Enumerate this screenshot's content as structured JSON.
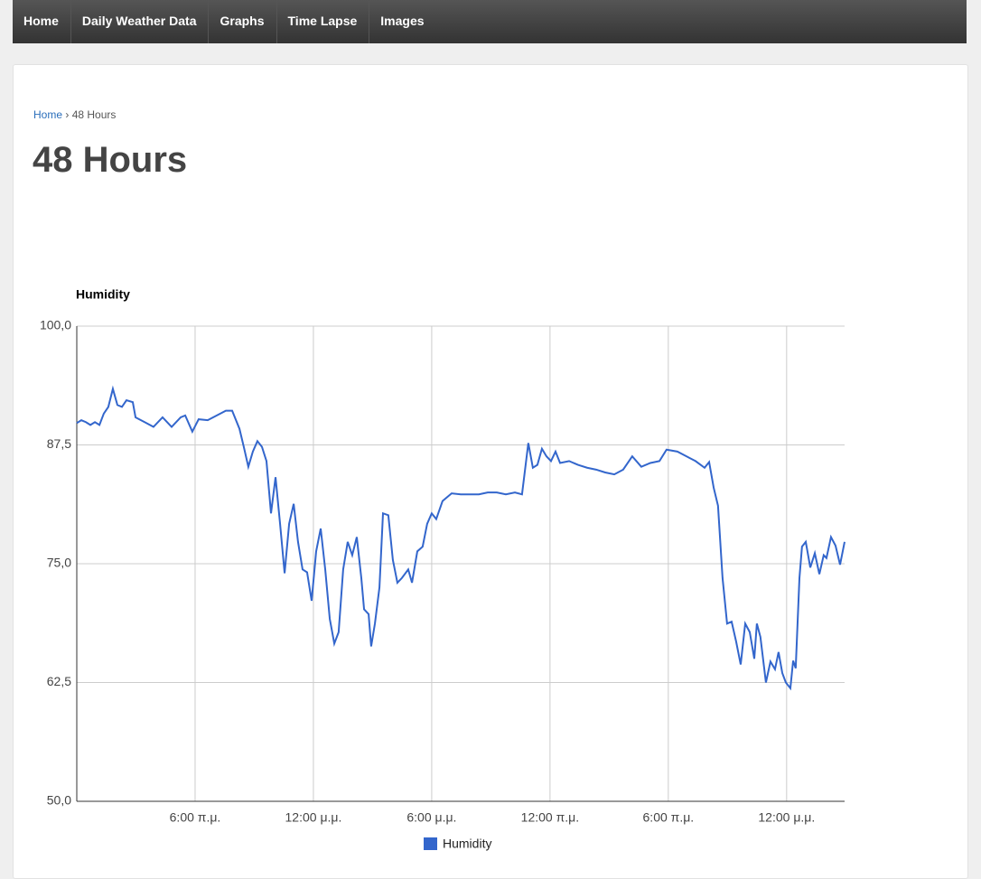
{
  "nav": [
    "Home",
    "Daily Weather Data",
    "Graphs",
    "Time Lapse",
    "Images"
  ],
  "breadcrumb": {
    "home": "Home",
    "separator": "›",
    "current": "48 Hours"
  },
  "heading": "48 Hours",
  "chart_data": {
    "type": "line",
    "title": "Humidity",
    "grid": true,
    "legend": "bottom",
    "x": [
      0,
      0.23,
      0.46,
      0.69,
      0.92,
      1.15,
      1.37,
      1.6,
      1.83,
      2.06,
      2.29,
      2.52,
      2.84,
      2.98,
      3.44,
      3.89,
      4.35,
      4.81,
      5.27,
      5.5,
      5.86,
      6.18,
      6.64,
      7.1,
      7.56,
      7.88,
      8.25,
      8.47,
      8.7,
      8.93,
      9.16,
      9.39,
      9.62,
      9.85,
      10.08,
      10.31,
      10.54,
      10.77,
      11,
      11.22,
      11.45,
      11.68,
      11.91,
      12.14,
      12.37,
      12.6,
      12.83,
      13.06,
      13.28,
      13.51,
      13.74,
      13.97,
      14.2,
      14.43,
      14.57,
      14.8,
      14.93,
      15.12,
      15.35,
      15.53,
      15.8,
      16.03,
      16.26,
      16.49,
      16.81,
      17,
      17.27,
      17.54,
      17.77,
      18,
      18.23,
      18.55,
      19.01,
      19.47,
      19.93,
      20.39,
      20.84,
      21.3,
      21.76,
      22.22,
      22.58,
      22.9,
      23.13,
      23.36,
      23.59,
      23.82,
      24.05,
      24.28,
      24.51,
      24.97,
      25.42,
      25.88,
      26.34,
      26.8,
      27.26,
      27.71,
      28.17,
      28.63,
      29.09,
      29.55,
      29.91,
      30.46,
      30.92,
      31.38,
      31.84,
      32.07,
      32.3,
      32.52,
      32.75,
      32.98,
      33.21,
      33.44,
      33.67,
      33.9,
      34.13,
      34.36,
      34.49,
      34.67,
      34.95,
      35.18,
      35.41,
      35.59,
      35.78,
      35.96,
      36.19,
      36.33,
      36.46,
      36.65,
      36.78,
      36.97,
      37.2,
      37.43,
      37.66,
      37.88,
      38.02,
      38.25,
      38.48,
      38.71,
      38.94
    ],
    "series": [
      {
        "name": "Humidity",
        "color": "#3366cc",
        "values": [
          89.8,
          90.1,
          89.9,
          89.6,
          89.9,
          89.6,
          90.8,
          91.5,
          93.4,
          91.7,
          91.5,
          92.2,
          92.0,
          90.4,
          89.9,
          89.4,
          90.4,
          89.4,
          90.4,
          90.6,
          88.9,
          90.2,
          90.1,
          90.6,
          91.1,
          91.1,
          89.2,
          87.3,
          85.2,
          86.8,
          87.9,
          87.3,
          85.8,
          80.3,
          84.1,
          79.2,
          74.0,
          79.2,
          81.3,
          77.3,
          74.4,
          74.1,
          71.1,
          76.3,
          78.7,
          74.4,
          69.2,
          66.6,
          67.8,
          74.4,
          77.3,
          75.9,
          77.8,
          73.5,
          70.2,
          69.7,
          66.3,
          68.7,
          72.5,
          80.3,
          80.1,
          75.4,
          73.0,
          73.5,
          74.4,
          73.0,
          76.3,
          76.8,
          79.2,
          80.3,
          79.7,
          81.6,
          82.4,
          82.3,
          82.3,
          82.3,
          82.5,
          82.5,
          82.3,
          82.5,
          82.3,
          87.7,
          85.1,
          85.4,
          87.1,
          86.3,
          85.8,
          86.8,
          85.6,
          85.8,
          85.4,
          85.1,
          84.9,
          84.6,
          84.4,
          84.9,
          86.3,
          85.2,
          85.6,
          85.8,
          87.0,
          86.8,
          86.3,
          85.8,
          85.1,
          85.7,
          83.0,
          81.1,
          73.5,
          68.7,
          68.9,
          66.8,
          64.4,
          68.7,
          67.8,
          65.0,
          68.7,
          67.3,
          62.5,
          64.7,
          63.9,
          65.7,
          63.5,
          62.5,
          61.9,
          64.8,
          64.0,
          73.5,
          76.8,
          77.3,
          74.6,
          76.1,
          73.9,
          75.9,
          75.6,
          77.8,
          76.9,
          74.9,
          77.3
        ]
      }
    ],
    "xlim": [
      0,
      38.94
    ],
    "xticks": [
      {
        "value": 6,
        "label": "6:00 π.μ."
      },
      {
        "value": 12,
        "label": "12:00 μ.μ."
      },
      {
        "value": 18,
        "label": "6:00 μ.μ."
      },
      {
        "value": 24,
        "label": "12:00 π.μ."
      },
      {
        "value": 30,
        "label": "6:00 π.μ."
      },
      {
        "value": 36,
        "label": "12:00 μ.μ."
      }
    ],
    "ylim": [
      50,
      100
    ],
    "yticks": [
      {
        "value": 50,
        "label": "50,0"
      },
      {
        "value": 62.5,
        "label": "62,5"
      },
      {
        "value": 75,
        "label": "75,0"
      },
      {
        "value": 87.5,
        "label": "87,5"
      },
      {
        "value": 100,
        "label": "100,0"
      }
    ]
  }
}
